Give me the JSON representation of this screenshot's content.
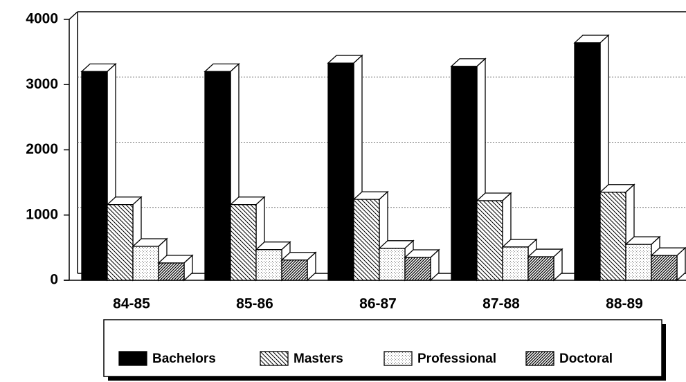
{
  "chart_data": {
    "type": "bar3d",
    "categories": [
      "84-85",
      "85-86",
      "86-87",
      "87-88",
      "88-89"
    ],
    "series": [
      {
        "name": "Bachelors",
        "color": "solid",
        "values": [
          3200,
          3200,
          3330,
          3280,
          3640
        ]
      },
      {
        "name": "Masters",
        "color": "backslash-hatch",
        "values": [
          1160,
          1160,
          1240,
          1220,
          1350
        ]
      },
      {
        "name": "Professional",
        "color": "dots",
        "values": [
          520,
          470,
          490,
          510,
          550
        ]
      },
      {
        "name": "Doctoral",
        "color": "slash-hatch",
        "values": [
          265,
          310,
          350,
          360,
          380
        ]
      }
    ],
    "ylim": [
      0,
      4000
    ],
    "yticks": [
      0,
      1000,
      2000,
      3000,
      4000
    ],
    "grid": true,
    "legend": "bottom"
  }
}
